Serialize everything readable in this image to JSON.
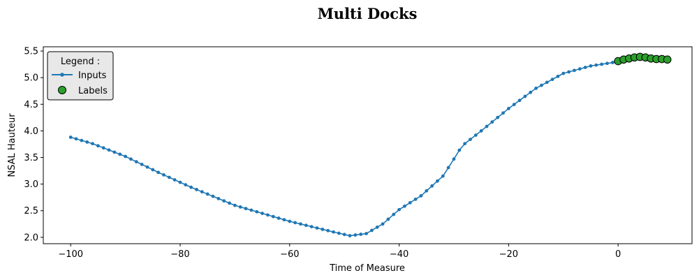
{
  "chart_data": {
    "type": "line",
    "title": "Multi Docks",
    "xlabel": "Time of Measure",
    "ylabel": "NSAL Hauteur",
    "xlim": [
      -105,
      13.5
    ],
    "ylim": [
      1.88,
      5.58
    ],
    "xticks": [
      -100,
      -80,
      -60,
      -40,
      -20,
      0
    ],
    "xtick_labels": [
      "−100",
      "−80",
      "−60",
      "−40",
      "−20",
      "0"
    ],
    "yticks": [
      2.0,
      2.5,
      3.0,
      3.5,
      4.0,
      4.5,
      5.0,
      5.5
    ],
    "ytick_labels": [
      "2.0",
      "2.5",
      "3.0",
      "3.5",
      "4.0",
      "4.5",
      "5.0",
      "5.5"
    ],
    "grid": false,
    "legend": {
      "title": "Legend :",
      "placement": "top-left",
      "entries": [
        "Inputs",
        "Labels"
      ]
    },
    "series": [
      {
        "name": "Inputs",
        "color": "#1f77b4",
        "marker": "dot",
        "anchors": [
          [
            -100,
            3.88
          ],
          [
            -96,
            3.76
          ],
          [
            -90,
            3.52
          ],
          [
            -84,
            3.22
          ],
          [
            -78,
            2.94
          ],
          [
            -70,
            2.6
          ],
          [
            -60,
            2.3
          ],
          [
            -52,
            2.1
          ],
          [
            -49,
            2.03
          ],
          [
            -46,
            2.07
          ],
          [
            -43,
            2.25
          ],
          [
            -40,
            2.52
          ],
          [
            -36,
            2.78
          ],
          [
            -32,
            3.15
          ],
          [
            -30,
            3.47
          ],
          [
            -28.5,
            3.72
          ],
          [
            -25,
            4.0
          ],
          [
            -20,
            4.42
          ],
          [
            -15,
            4.8
          ],
          [
            -10,
            5.08
          ],
          [
            -5,
            5.22
          ],
          [
            0,
            5.3
          ]
        ],
        "x": [
          -100,
          -99,
          -98,
          -97,
          -96,
          -95,
          -94,
          -93,
          -92,
          -91,
          -90,
          -89,
          -88,
          -87,
          -86,
          -85,
          -84,
          -83,
          -82,
          -81,
          -80,
          -79,
          -78,
          -77,
          -76,
          -75,
          -74,
          -73,
          -72,
          -71,
          -70,
          -69,
          -68,
          -67,
          -66,
          -65,
          -64,
          -63,
          -62,
          -61,
          -60,
          -59,
          -58,
          -57,
          -56,
          -55,
          -54,
          -53,
          -52,
          -51,
          -50,
          -49,
          -48,
          -47,
          -46,
          -45,
          -44,
          -43,
          -42,
          -41,
          -40,
          -39,
          -38,
          -37,
          -36,
          -35,
          -34,
          -33,
          -32,
          -31,
          -30,
          -29,
          -28,
          -27,
          -26,
          -25,
          -24,
          -23,
          -22,
          -21,
          -20,
          -19,
          -18,
          -17,
          -16,
          -15,
          -14,
          -13,
          -12,
          -11,
          -10,
          -9,
          -8,
          -7,
          -6,
          -5,
          -4,
          -3,
          -2,
          -1,
          0
        ]
      },
      {
        "name": "Labels",
        "color": "#2ca02c",
        "marker": "circle",
        "x": [
          0,
          1,
          2,
          3,
          4,
          5,
          6,
          7,
          8,
          9
        ],
        "y": [
          5.31,
          5.34,
          5.36,
          5.38,
          5.39,
          5.38,
          5.36,
          5.35,
          5.35,
          5.34
        ]
      }
    ]
  }
}
